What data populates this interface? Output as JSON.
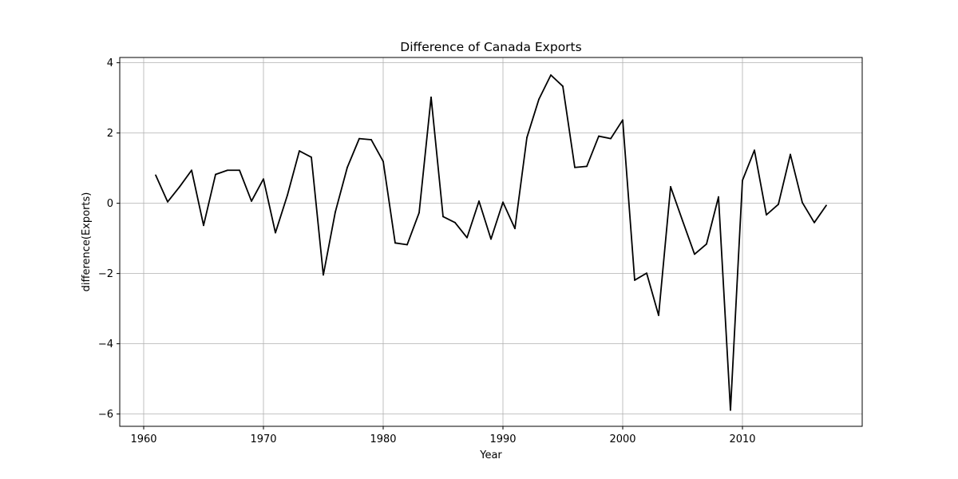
{
  "chart_data": {
    "type": "line",
    "title": "Difference of Canada Exports",
    "xlabel": "Year",
    "ylabel": "difference(Exports)",
    "xlim": [
      1958,
      2020
    ],
    "ylim": [
      -6.35,
      4.15
    ],
    "xticks": [
      1960,
      1970,
      1980,
      1990,
      2000,
      2010
    ],
    "xtick_labels": [
      "1960",
      "1970",
      "1980",
      "1990",
      "2000",
      "2010"
    ],
    "yticks": [
      -6,
      -4,
      -2,
      0,
      2,
      4
    ],
    "ytick_labels": [
      "−6",
      "−4",
      "−2",
      "0",
      "2",
      "4"
    ],
    "grid": true,
    "line_color": "#000000",
    "series": [
      {
        "x": [
          1961,
          1962,
          1963,
          1964,
          1965,
          1966,
          1967,
          1968,
          1969,
          1970,
          1971,
          1972,
          1973,
          1974,
          1975,
          1976,
          1977,
          1978,
          1979,
          1980,
          1981,
          1982,
          1983,
          1984,
          1985,
          1986,
          1987,
          1988,
          1989,
          1990,
          1991,
          1992,
          1993,
          1994,
          1995,
          1996,
          1997,
          1998,
          1999,
          2000,
          2001,
          2002,
          2003,
          2004,
          2005,
          2006,
          2007,
          2008,
          2009,
          2010,
          2011,
          2012,
          2013,
          2014,
          2015,
          2016,
          2017
        ],
        "values": [
          0.8,
          0.04,
          0.47,
          0.94,
          -0.63,
          0.82,
          0.94,
          0.94,
          0.06,
          0.69,
          -0.84,
          0.23,
          1.49,
          1.31,
          -2.04,
          -0.25,
          1.02,
          1.84,
          1.81,
          1.19,
          -1.13,
          -1.18,
          -0.27,
          3.02,
          -0.38,
          -0.55,
          -0.98,
          0.06,
          -1.02,
          0.03,
          -0.72,
          1.87,
          2.96,
          3.65,
          3.33,
          1.02,
          1.05,
          1.91,
          1.84,
          2.37,
          -2.19,
          -1.99,
          -3.19,
          0.47,
          -0.5,
          -1.45,
          -1.16,
          0.18,
          -5.89,
          0.65,
          1.51,
          -0.33,
          -0.03,
          1.39,
          0.02,
          -0.55,
          -0.06
        ]
      }
    ]
  }
}
